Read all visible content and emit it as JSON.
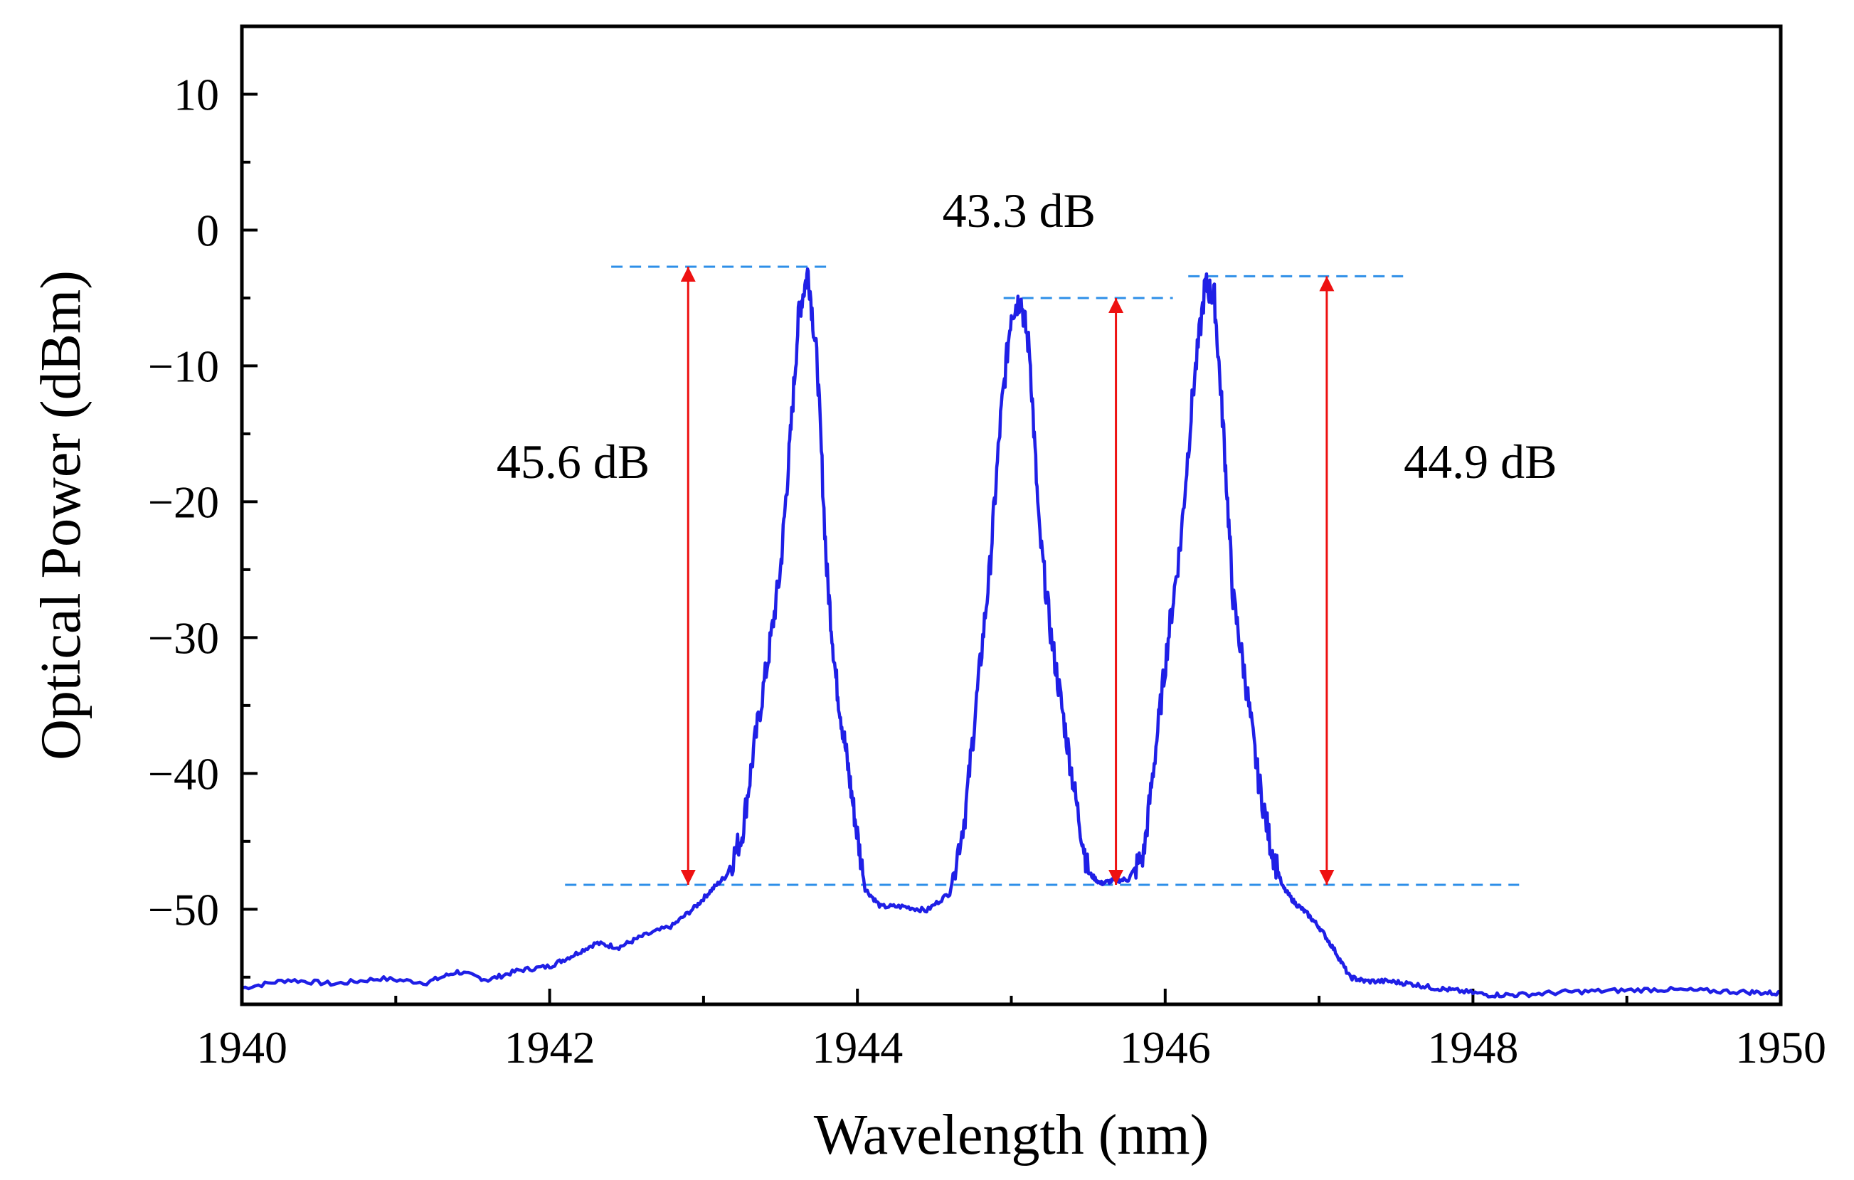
{
  "chart_data": {
    "type": "line",
    "title": "",
    "xlabel": "Wavelength (nm)",
    "ylabel": "Optical Power (dBm)",
    "xlim": [
      1940,
      1950
    ],
    "ylim": [
      -57,
      15
    ],
    "xticks": [
      1940,
      1942,
      1944,
      1946,
      1948,
      1950
    ],
    "xtick_labels": [
      "1940",
      "1942",
      "1944",
      "1946",
      "1948",
      "1950"
    ],
    "yticks": [
      10,
      0,
      -10,
      -20,
      -30,
      -40,
      -50
    ],
    "ytick_labels": [
      "10",
      "0",
      "−10",
      "−20",
      "−30",
      "−40",
      "−50"
    ],
    "grid": false,
    "series": [
      {
        "name": "Spectrum",
        "color": "#1f1fe6",
        "x": [
          1940.0,
          1940.3,
          1940.6,
          1940.9,
          1941.2,
          1941.4,
          1941.6,
          1941.8,
          1942.0,
          1942.15,
          1942.3,
          1942.45,
          1942.6,
          1942.8,
          1942.95,
          1943.05,
          1943.15,
          1943.25,
          1943.33,
          1943.42,
          1943.5,
          1943.56,
          1943.62,
          1943.68,
          1943.74,
          1943.8,
          1943.86,
          1943.92,
          1943.98,
          1944.05,
          1944.15,
          1944.3,
          1944.45,
          1944.6,
          1944.7,
          1944.78,
          1944.86,
          1944.93,
          1945.0,
          1945.06,
          1945.12,
          1945.18,
          1945.26,
          1945.34,
          1945.42,
          1945.5,
          1945.58,
          1945.66,
          1945.76,
          1945.86,
          1945.94,
          1946.02,
          1946.1,
          1946.18,
          1946.26,
          1946.32,
          1946.38,
          1946.44,
          1946.52,
          1946.6,
          1946.68,
          1946.76,
          1946.84,
          1946.92,
          1947.0,
          1947.1,
          1947.2,
          1947.3,
          1947.45,
          1947.6,
          1947.75,
          1947.9,
          1948.1,
          1948.3,
          1948.6,
          1948.9,
          1949.2,
          1949.5,
          1949.8,
          1950.0
        ],
        "y": [
          -55.8,
          -55.2,
          -55.5,
          -55.1,
          -55.4,
          -54.6,
          -55.2,
          -54.5,
          -54.2,
          -53.4,
          -52.5,
          -52.8,
          -52.0,
          -51.2,
          -49.8,
          -48.6,
          -47.5,
          -44.5,
          -38.0,
          -31.5,
          -25.0,
          -16.0,
          -6.0,
          -3.0,
          -10.0,
          -25.0,
          -33.0,
          -38.0,
          -43.0,
          -48.5,
          -49.8,
          -49.8,
          -50.1,
          -48.8,
          -43.0,
          -34.0,
          -25.0,
          -14.0,
          -6.0,
          -5.0,
          -9.0,
          -22.0,
          -30.0,
          -36.0,
          -42.0,
          -47.3,
          -48.1,
          -47.9,
          -47.8,
          -46.0,
          -38.0,
          -30.0,
          -23.0,
          -12.0,
          -4.0,
          -5.0,
          -15.0,
          -27.0,
          -33.0,
          -40.0,
          -45.0,
          -48.3,
          -49.5,
          -50.3,
          -51.3,
          -53.0,
          -55.0,
          -55.3,
          -55.3,
          -55.5,
          -55.8,
          -56.0,
          -56.3,
          -56.3,
          -56.1,
          -56.0,
          -55.9,
          -56.0,
          -56.1,
          -56.2
        ]
      }
    ],
    "reference_lines": [
      {
        "name": "peak-level-1",
        "x": [
          1942.4,
          1943.8
        ],
        "y": [
          -2.7,
          -2.7
        ],
        "style": "dashed",
        "color": "#2e8fe8"
      },
      {
        "name": "peak-level-2",
        "x": [
          1944.95,
          1946.05
        ],
        "y": [
          -5.0,
          -5.0
        ],
        "style": "dashed",
        "color": "#2e8fe8"
      },
      {
        "name": "peak-level-3",
        "x": [
          1946.15,
          1947.55
        ],
        "y": [
          -3.4,
          -3.4
        ],
        "style": "dashed",
        "color": "#2e8fe8"
      },
      {
        "name": "noise-floor",
        "x": [
          1942.1,
          1948.3
        ],
        "y": [
          -48.2,
          -48.2
        ],
        "style": "dashed",
        "color": "#2e8fe8"
      }
    ],
    "arrows": [
      {
        "x": 1942.9,
        "y1": -48.2,
        "y2": -2.7,
        "color": "#ee1111"
      },
      {
        "x": 1945.68,
        "y1": -48.2,
        "y2": -5.0,
        "color": "#ee1111"
      },
      {
        "x": 1947.05,
        "y1": -48.2,
        "y2": -3.4,
        "color": "#ee1111"
      }
    ],
    "annotations": [
      {
        "text": "45.6 dB",
        "x": 1942.65,
        "y": -17.0,
        "anchor": "end"
      },
      {
        "text": "43.3 dB",
        "x": 1945.05,
        "y": 1.5,
        "anchor": "middle"
      },
      {
        "text": "44.9 dB",
        "x": 1947.55,
        "y": -17.0,
        "anchor": "start"
      }
    ]
  }
}
